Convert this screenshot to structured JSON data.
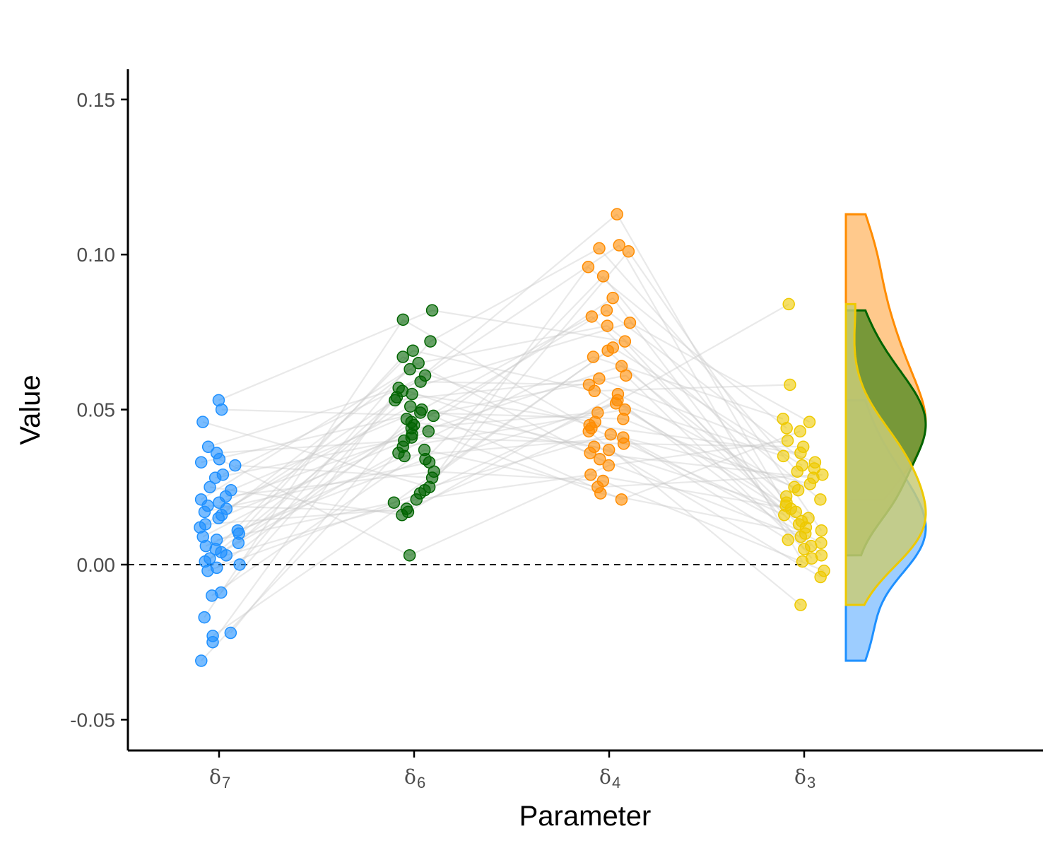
{
  "chart_data": {
    "type": "scatter",
    "xlabel": "Parameter",
    "ylabel": "Value",
    "ylim": [
      -0.06,
      0.16
    ],
    "yticks": [
      -0.05,
      0.0,
      0.05,
      0.1,
      0.15
    ],
    "ytick_labels": [
      "-0.05",
      "0.00",
      "0.05",
      "0.10",
      "0.15"
    ],
    "reference_line": 0.0,
    "grid": false,
    "connecting_lines_color": "#c8c8c8",
    "categories": [
      {
        "symbol": "δ",
        "subscript": "7"
      },
      {
        "symbol": "δ",
        "subscript": "6"
      },
      {
        "symbol": "δ",
        "subscript": "4"
      },
      {
        "symbol": "δ",
        "subscript": "3"
      }
    ],
    "series": [
      {
        "color": "#1E90FF",
        "fill": "#8CC4FF",
        "values": [
          0.053,
          0.05,
          0.046,
          0.038,
          0.036,
          0.034,
          0.033,
          0.032,
          0.029,
          0.028,
          0.025,
          0.024,
          0.022,
          0.021,
          0.02,
          0.019,
          0.018,
          0.017,
          0.016,
          0.015,
          0.013,
          0.012,
          0.011,
          0.01,
          0.009,
          0.008,
          0.007,
          0.006,
          0.005,
          0.004,
          0.003,
          0.002,
          0.001,
          0.0,
          -0.001,
          -0.002,
          -0.009,
          -0.01,
          -0.017,
          -0.022,
          -0.023,
          -0.025,
          -0.031
        ]
      },
      {
        "color": "#006400",
        "fill": "#5F8F2A",
        "values": [
          0.082,
          0.079,
          0.072,
          0.069,
          0.067,
          0.065,
          0.063,
          0.061,
          0.059,
          0.057,
          0.056,
          0.055,
          0.054,
          0.053,
          0.051,
          0.05,
          0.049,
          0.048,
          0.047,
          0.046,
          0.045,
          0.044,
          0.043,
          0.042,
          0.041,
          0.04,
          0.038,
          0.037,
          0.036,
          0.035,
          0.034,
          0.033,
          0.03,
          0.028,
          0.025,
          0.024,
          0.023,
          0.021,
          0.02,
          0.018,
          0.017,
          0.016,
          0.003
        ]
      },
      {
        "color": "#FF8C00",
        "fill": "#FFBF78",
        "values": [
          0.113,
          0.103,
          0.102,
          0.101,
          0.096,
          0.093,
          0.086,
          0.082,
          0.08,
          0.078,
          0.077,
          0.072,
          0.07,
          0.069,
          0.067,
          0.064,
          0.061,
          0.06,
          0.058,
          0.056,
          0.055,
          0.053,
          0.052,
          0.05,
          0.049,
          0.047,
          0.046,
          0.045,
          0.044,
          0.043,
          0.042,
          0.041,
          0.039,
          0.038,
          0.037,
          0.036,
          0.034,
          0.032,
          0.029,
          0.027,
          0.025,
          0.023,
          0.021
        ]
      },
      {
        "color": "#EEC900",
        "fill": "#C9CB78",
        "values": [
          0.084,
          0.058,
          0.047,
          0.046,
          0.044,
          0.043,
          0.04,
          0.038,
          0.036,
          0.035,
          0.033,
          0.032,
          0.031,
          0.03,
          0.029,
          0.028,
          0.026,
          0.025,
          0.024,
          0.022,
          0.021,
          0.02,
          0.019,
          0.018,
          0.017,
          0.016,
          0.015,
          0.014,
          0.013,
          0.012,
          0.011,
          0.01,
          0.009,
          0.008,
          0.007,
          0.006,
          0.005,
          0.003,
          0.002,
          0.001,
          -0.002,
          -0.004,
          -0.013
        ]
      }
    ]
  }
}
